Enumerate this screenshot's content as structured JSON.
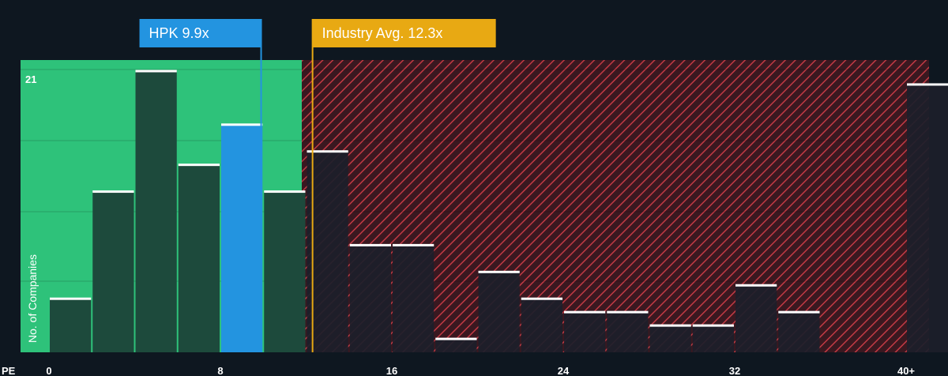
{
  "chart_data": {
    "type": "bar",
    "xlabel": "PE",
    "ylabel": "No. of Companies",
    "x_ticks": [
      "0",
      "8",
      "16",
      "24",
      "32",
      "40+"
    ],
    "x_tick_values": [
      0,
      8,
      16,
      24,
      32,
      40
    ],
    "y_max_label": "21",
    "ylim": [
      0,
      21
    ],
    "bin_width": 2,
    "bins": [
      {
        "x0": 0,
        "value": 4
      },
      {
        "x0": 2,
        "value": 12
      },
      {
        "x0": 4,
        "value": 21
      },
      {
        "x0": 6,
        "value": 14
      },
      {
        "x0": 8,
        "value": 17
      },
      {
        "x0": 10,
        "value": 12
      },
      {
        "x0": 12,
        "value": 15
      },
      {
        "x0": 14,
        "value": 8
      },
      {
        "x0": 16,
        "value": 8
      },
      {
        "x0": 18,
        "value": 1
      },
      {
        "x0": 20,
        "value": 6
      },
      {
        "x0": 22,
        "value": 4
      },
      {
        "x0": 24,
        "value": 3
      },
      {
        "x0": 26,
        "value": 3
      },
      {
        "x0": 28,
        "value": 2
      },
      {
        "x0": 30,
        "value": 2
      },
      {
        "x0": 32,
        "value": 5
      },
      {
        "x0": 34,
        "value": 3
      },
      {
        "x0": 36,
        "value": 0
      },
      {
        "x0": 38,
        "value": 0
      },
      {
        "x0": 40,
        "value": 20
      }
    ],
    "highlight_bin_x0": 8,
    "company": {
      "label": "HPK 9.9x",
      "value": 9.9
    },
    "industry": {
      "label": "Industry Avg. 12.3x",
      "value": 12.3
    },
    "colors": {
      "background": "#0e1720",
      "below_zone": "#2ec27a",
      "above_zone": "#3a1820",
      "hatch": "#c23a44",
      "bar_dark": "#1d4a3c",
      "bar_highlight": "#2394e0",
      "bar_above": "#1c1f2a",
      "bar_top": "#ffffff",
      "company_label_bg": "#2394e0",
      "industry_label_bg": "#e8a913",
      "text": "#ffffff"
    }
  }
}
